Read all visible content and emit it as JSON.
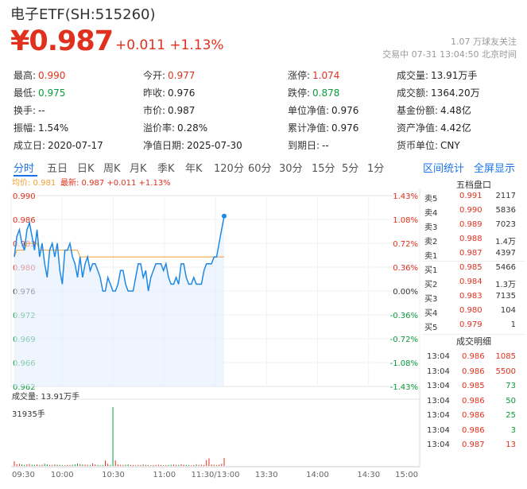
{
  "header": {
    "title": "电子ETF(SH:515260)",
    "price": "¥0.987",
    "change": "+0.011  +1.13%",
    "watchers": "1.07 万球友关注",
    "status": "交易中 07-31 13:04:50 北京时间"
  },
  "stats": [
    [
      {
        "label": "最高:",
        "value": "0.990",
        "color": "red"
      },
      {
        "label": "今开:",
        "value": "0.977",
        "color": "red"
      },
      {
        "label": "涨停:",
        "value": "1.074",
        "color": "red"
      },
      {
        "label": "成交量:",
        "value": "13.91万手",
        "color": "blk"
      }
    ],
    [
      {
        "label": "最低:",
        "value": "0.975",
        "color": "green"
      },
      {
        "label": "昨收:",
        "value": "0.976",
        "color": "blk"
      },
      {
        "label": "跌停:",
        "value": "0.878",
        "color": "green"
      },
      {
        "label": "成交额:",
        "value": "1364.20万",
        "color": "blk"
      }
    ],
    [
      {
        "label": "换手:",
        "value": "--",
        "color": "blk"
      },
      {
        "label": "市价:",
        "value": "0.987",
        "color": "blk"
      },
      {
        "label": "单位净值:",
        "value": "0.976",
        "color": "blk"
      },
      {
        "label": "基金份额:",
        "value": "4.48亿",
        "color": "blk"
      }
    ],
    [
      {
        "label": "振幅:",
        "value": "1.54%",
        "color": "blk"
      },
      {
        "label": "溢价率:",
        "value": "0.28%",
        "color": "blk"
      },
      {
        "label": "累计净值:",
        "value": "0.976",
        "color": "blk"
      },
      {
        "label": "资产净值:",
        "value": "4.42亿",
        "color": "blk"
      }
    ],
    [
      {
        "label": "成立日:",
        "value": "2020-07-17",
        "color": "blk"
      },
      {
        "label": "净值日期:",
        "value": "2025-07-30",
        "color": "blk"
      },
      {
        "label": "到期日:",
        "value": "--",
        "color": "blk"
      },
      {
        "label": "货币单位:",
        "value": "CNY",
        "color": "blk"
      }
    ]
  ],
  "tabs": [
    "分时",
    "五日",
    "日K",
    "周K",
    "月K",
    "季K",
    "年K",
    "120分",
    "60分",
    "30分",
    "15分",
    "5分",
    "1分"
  ],
  "links": {
    "range": "区间统计",
    "fullscreen": "全屏显示"
  },
  "chart_legend": {
    "avg": "均价: 0.981",
    "latest": "最新: 0.987  +0.011  +1.13%"
  },
  "chart_data": {
    "type": "line",
    "x_ticks": [
      "09:30",
      "10:00",
      "10:30",
      "11:00",
      "11:30/13:00",
      "13:30",
      "14:00",
      "14:30",
      "15:00"
    ],
    "y_ticks_left": [
      "0.990",
      "0.986",
      "0.983",
      "0.980",
      "0.976",
      "0.972",
      "0.969",
      "0.966",
      "0.962"
    ],
    "y_ticks_right": [
      "1.43%",
      "1.08%",
      "0.72%",
      "0.36%",
      "0.00%",
      "-0.36%",
      "-0.72%",
      "-1.08%",
      "-1.43%"
    ],
    "ylim": [
      0.962,
      0.99
    ],
    "prev_close": 0.976,
    "series": [
      {
        "name": "最新",
        "values": [
          0.981,
          0.984,
          0.985,
          0.983,
          0.982,
          0.985,
          0.986,
          0.984,
          0.982,
          0.985,
          0.981,
          0.983,
          0.98,
          0.978,
          0.982,
          0.983,
          0.981,
          0.983,
          0.979,
          0.977,
          0.982,
          0.982,
          0.983,
          0.981,
          0.98,
          0.978,
          0.981,
          0.978,
          0.98,
          0.981,
          0.979,
          0.98,
          0.98,
          0.979,
          0.978,
          0.976,
          0.976,
          0.978,
          0.977,
          0.976,
          0.976,
          0.977,
          0.979,
          0.979,
          0.977,
          0.976,
          0.976,
          0.976,
          0.978,
          0.98,
          0.98,
          0.978,
          0.979,
          0.976,
          0.978,
          0.979,
          0.98,
          0.98,
          0.98,
          0.979,
          0.98,
          0.978,
          0.977,
          0.977,
          0.978,
          0.977,
          0.98,
          0.98,
          0.978,
          0.977,
          0.977,
          0.978,
          0.977,
          0.977,
          0.977,
          0.979,
          0.98,
          0.98,
          0.98,
          0.981,
          0.981,
          0.983,
          0.985,
          0.987
        ]
      },
      {
        "name": "均价",
        "values": [
          0.981,
          0.982,
          0.982,
          0.982,
          0.982,
          0.983,
          0.983,
          0.983,
          0.983,
          0.983,
          0.982,
          0.982,
          0.982,
          0.982,
          0.982,
          0.982,
          0.982,
          0.982,
          0.982,
          0.982,
          0.982,
          0.982,
          0.982,
          0.982,
          0.982,
          0.982,
          0.981,
          0.981,
          0.981,
          0.981,
          0.981,
          0.981,
          0.981,
          0.981,
          0.981,
          0.981,
          0.981,
          0.981,
          0.981,
          0.981,
          0.981,
          0.981,
          0.981,
          0.981,
          0.981,
          0.981,
          0.981,
          0.981,
          0.981,
          0.981,
          0.981,
          0.981,
          0.981,
          0.981,
          0.981,
          0.981,
          0.981,
          0.981,
          0.981,
          0.981,
          0.981,
          0.981,
          0.981,
          0.981,
          0.981,
          0.981,
          0.981,
          0.981,
          0.981,
          0.981,
          0.981,
          0.981,
          0.981,
          0.981,
          0.981,
          0.981,
          0.981,
          0.981,
          0.981,
          0.981,
          0.981,
          0.981,
          0.981,
          0.981
        ]
      }
    ],
    "volume_label": "成交量: 13.91万手",
    "volume_peak": "31935手",
    "volume_max": 31935,
    "volume": [
      2500,
      900,
      1200,
      800,
      600,
      900,
      1100,
      700,
      600,
      800,
      500,
      700,
      1200,
      900,
      500,
      600,
      800,
      700,
      600,
      500,
      400,
      600,
      500,
      700,
      900,
      1300,
      1000,
      800,
      700,
      600,
      500,
      1400,
      800,
      600,
      400,
      500,
      2900,
      1200,
      600,
      31935,
      3000,
      800,
      600,
      500,
      700,
      900,
      600,
      500,
      400,
      600,
      500,
      800,
      600,
      500,
      400,
      500,
      600,
      700,
      500,
      400,
      500,
      600,
      700,
      800,
      500,
      600,
      900,
      700,
      600,
      500,
      400,
      500,
      900,
      600,
      700,
      500,
      3200,
      4200,
      800,
      600,
      500,
      700,
      1200,
      4300
    ]
  },
  "orderbook": {
    "title": "五档盘口",
    "asks": [
      {
        "label": "卖5",
        "price": "0.991",
        "vol": "2117"
      },
      {
        "label": "卖4",
        "price": "0.990",
        "vol": "5836"
      },
      {
        "label": "卖3",
        "price": "0.989",
        "vol": "7023"
      },
      {
        "label": "卖2",
        "price": "0.988",
        "vol": "1.4万"
      },
      {
        "label": "卖1",
        "price": "0.987",
        "vol": "4397"
      }
    ],
    "bids": [
      {
        "label": "买1",
        "price": "0.985",
        "vol": "5466"
      },
      {
        "label": "买2",
        "price": "0.984",
        "vol": "1.3万"
      },
      {
        "label": "买3",
        "price": "0.983",
        "vol": "7135"
      },
      {
        "label": "买4",
        "price": "0.980",
        "vol": "104"
      },
      {
        "label": "买5",
        "price": "0.979",
        "vol": "1"
      }
    ],
    "trades_title": "成交明细",
    "trades": [
      {
        "time": "13:04",
        "price": "0.986",
        "vol": "1085",
        "dir": "red"
      },
      {
        "time": "13:04",
        "price": "0.986",
        "vol": "5500",
        "dir": "red"
      },
      {
        "time": "13:04",
        "price": "0.985",
        "vol": "73",
        "dir": "green"
      },
      {
        "time": "13:04",
        "price": "0.986",
        "vol": "50",
        "dir": "green"
      },
      {
        "time": "13:04",
        "price": "0.986",
        "vol": "25",
        "dir": "green"
      },
      {
        "time": "13:04",
        "price": "0.986",
        "vol": "3",
        "dir": "green"
      },
      {
        "time": "13:04",
        "price": "0.987",
        "vol": "13",
        "dir": "red"
      }
    ]
  },
  "colors": {
    "up": "#e0301e",
    "down": "#0a9b3a",
    "accent": "#1a73e8",
    "price_line": "#1e88e5",
    "avg_line": "#f0a030"
  }
}
